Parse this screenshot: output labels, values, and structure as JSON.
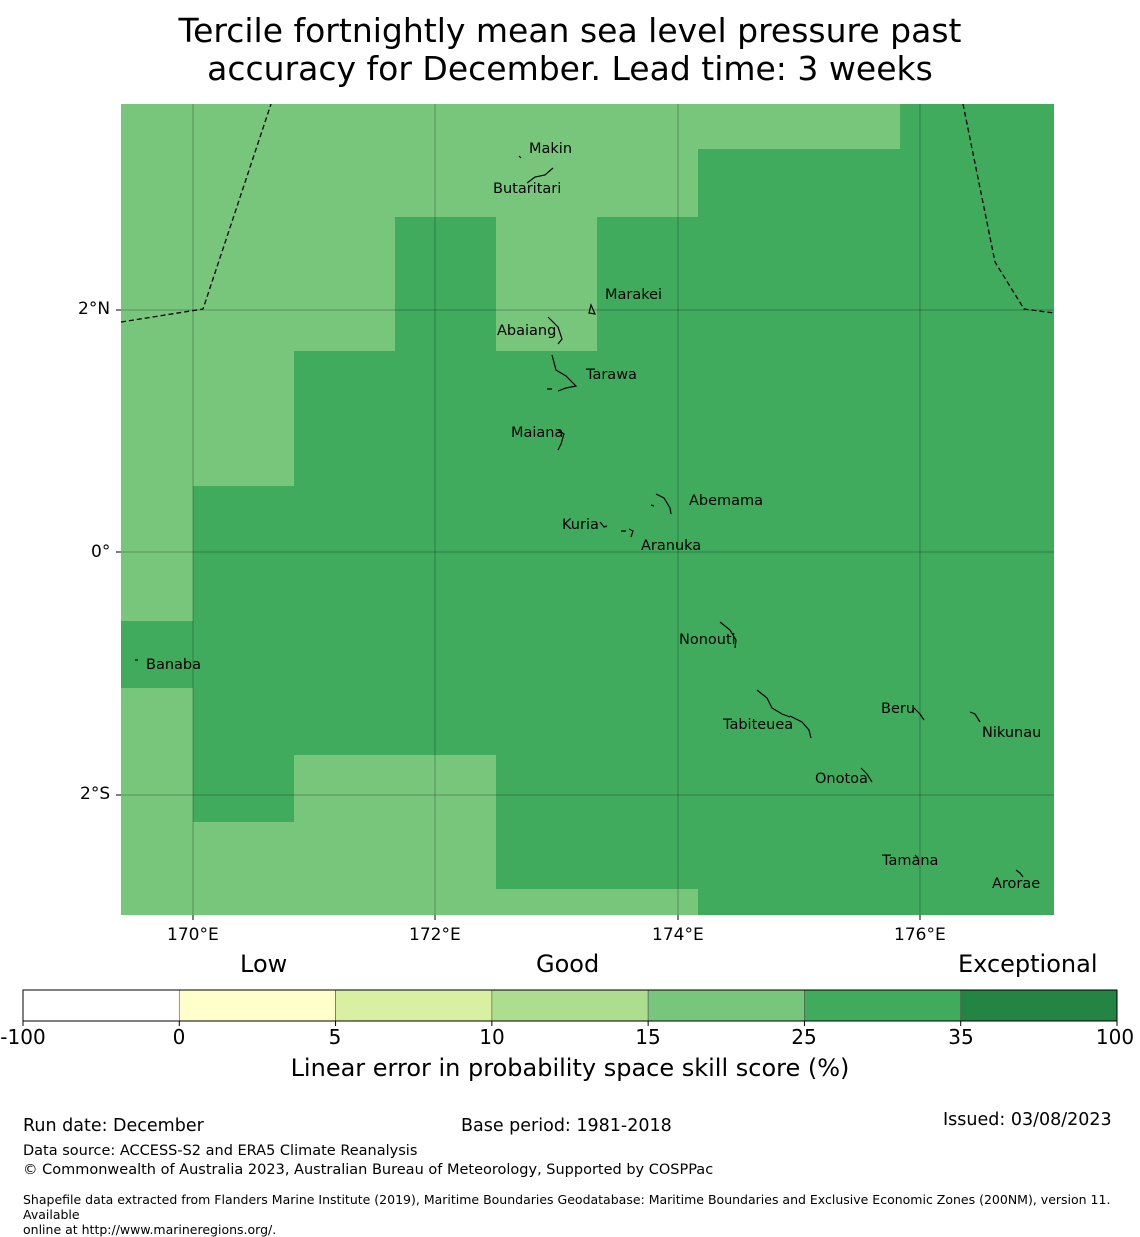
{
  "title": {
    "line1": "Tercile fortnightly mean sea level pressure past",
    "line2": "accuracy for December. Lead time: 3 weeks"
  },
  "map": {
    "lon_labels": [
      "170°E",
      "172°E",
      "174°E",
      "176°E"
    ],
    "lat_labels": [
      "2°N",
      "0°",
      "2°S"
    ],
    "places": [
      {
        "name": "Makin"
      },
      {
        "name": "Butaritari"
      },
      {
        "name": "Marakei"
      },
      {
        "name": "Abaiang"
      },
      {
        "name": "Tarawa"
      },
      {
        "name": "Maiana"
      },
      {
        "name": "Abemama"
      },
      {
        "name": "Kuria"
      },
      {
        "name": "Aranuka"
      },
      {
        "name": "Banaba"
      },
      {
        "name": "Nonouti"
      },
      {
        "name": "Tabiteuea"
      },
      {
        "name": "Beru"
      },
      {
        "name": "Nikunau"
      },
      {
        "name": "Onotoa"
      },
      {
        "name": "Tamana"
      },
      {
        "name": "Arorae"
      }
    ],
    "colors": {
      "score_15_25": "#78c67b",
      "score_25_35": "#41ab5d"
    }
  },
  "colorbar": {
    "category_labels": {
      "low": "Low",
      "good": "Good",
      "exceptional": "Exceptional"
    },
    "ticks": [
      "-100",
      "0",
      "5",
      "10",
      "15",
      "25",
      "35",
      "100"
    ],
    "colors": [
      "#ffffff",
      "#ffffcc",
      "#d9f0a3",
      "#addd8e",
      "#78c67b",
      "#41ab5d",
      "#238443"
    ],
    "axis_label": "Linear error in probability space skill score (%)"
  },
  "footer": {
    "run_date": "Run date: December",
    "base_period": "Base period: 1981-2018",
    "issued": "Issued: 03/08/2023",
    "data_source": "Data source: ACCESS-S2 and ERA5 Climate Reanalysis",
    "copyright": "© Commonwealth of Australia 2023, Australian Bureau of Meteorology, Supported by COSPPac",
    "shapefile_line1": "Shapefile data extracted from Flanders Marine Institute (2019), Maritime Boundaries Geodatabase: Maritime Boundaries and Exclusive Economic Zones (200NM), version 11. Available",
    "shapefile_line2": "online at http://www.marineregions.org/."
  }
}
